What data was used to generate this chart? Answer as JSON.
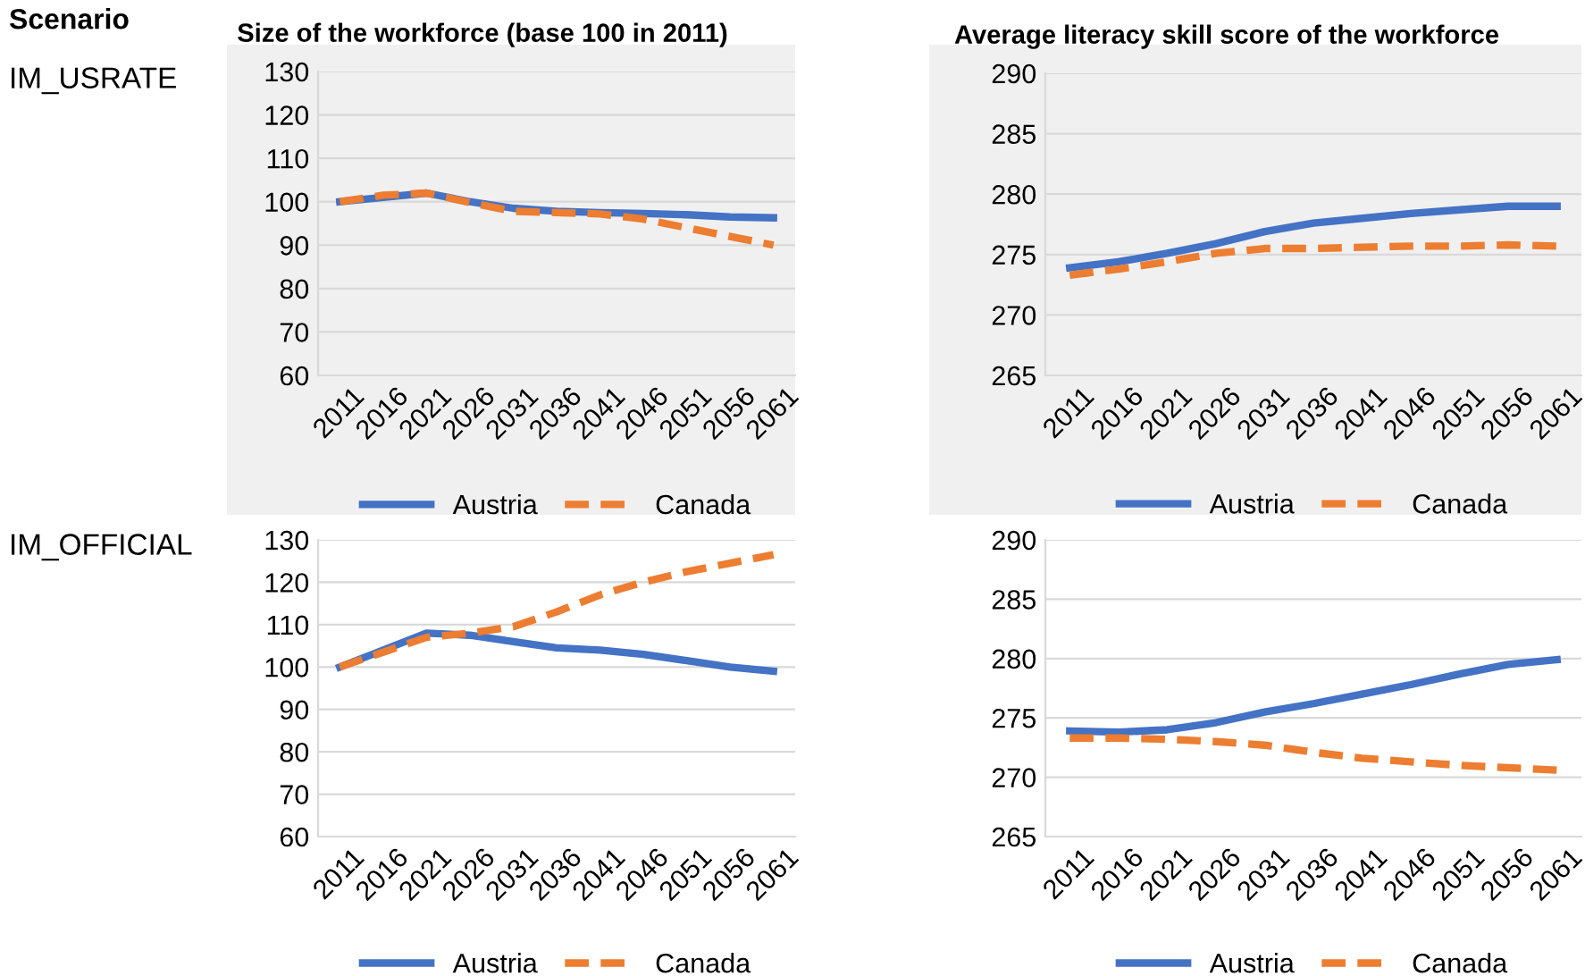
{
  "chart_data": [
    {
      "type": "line",
      "title": "Size of the workforce (base 100 in 2011)",
      "annotations": [
        "Scenario",
        "IM_USRATE"
      ],
      "categories": [
        "2011",
        "2016",
        "2021",
        "2026",
        "2031",
        "2036",
        "2041",
        "2046",
        "2051",
        "2056",
        "2061"
      ],
      "ylim": [
        60,
        130
      ],
      "yticks": [
        60,
        70,
        80,
        90,
        100,
        110,
        120,
        130
      ],
      "grid": "y",
      "legend": "bottom",
      "series": [
        {
          "name": "Austria",
          "color": "#4472c4",
          "line_style": "solid",
          "values": [
            100,
            101,
            102,
            100,
            98.5,
            97.8,
            97.5,
            97.3,
            97,
            96.5,
            96.3
          ]
        },
        {
          "name": "Canada",
          "color": "#ed7d31",
          "line_style": "dashed",
          "values": [
            100,
            101.5,
            102,
            99.8,
            97.8,
            97.5,
            97.2,
            96,
            94,
            92,
            90
          ]
        }
      ]
    },
    {
      "type": "line",
      "title": "Average literacy skill score of the workforce",
      "categories": [
        "2011",
        "2016",
        "2021",
        "2026",
        "2031",
        "2036",
        "2041",
        "2046",
        "2051",
        "2056",
        "2061"
      ],
      "ylim": [
        265,
        290
      ],
      "yticks": [
        265,
        270,
        275,
        280,
        285,
        290
      ],
      "grid": "y",
      "legend": "bottom",
      "series": [
        {
          "name": "Austria",
          "color": "#4472c4",
          "line_style": "solid",
          "values": [
            273.9,
            274.4,
            275.1,
            275.9,
            276.9,
            277.6,
            278,
            278.4,
            278.7,
            279,
            279
          ]
        },
        {
          "name": "Canada",
          "color": "#ed7d31",
          "line_style": "dashed",
          "values": [
            273.3,
            273.8,
            274.4,
            275.1,
            275.5,
            275.5,
            275.6,
            275.7,
            275.7,
            275.8,
            275.7
          ]
        }
      ]
    },
    {
      "type": "line",
      "annotations": [
        "IM_OFFICIAL"
      ],
      "categories": [
        "2011",
        "2016",
        "2021",
        "2026",
        "2031",
        "2036",
        "2041",
        "2046",
        "2051",
        "2056",
        "2061"
      ],
      "ylim": [
        60,
        130
      ],
      "yticks": [
        60,
        70,
        80,
        90,
        100,
        110,
        120,
        130
      ],
      "grid": "y",
      "legend": "bottom",
      "series": [
        {
          "name": "Austria",
          "color": "#4472c4",
          "line_style": "solid",
          "values": [
            100,
            104,
            108,
            107.5,
            106,
            104.5,
            104,
            103,
            101.5,
            100,
            99
          ]
        },
        {
          "name": "Canada",
          "color": "#ed7d31",
          "line_style": "dashed",
          "values": [
            100,
            103.5,
            107,
            108,
            109.5,
            113,
            117,
            120,
            122.5,
            124.5,
            126.5
          ]
        }
      ]
    },
    {
      "type": "line",
      "categories": [
        "2011",
        "2016",
        "2021",
        "2026",
        "2031",
        "2036",
        "2041",
        "2046",
        "2051",
        "2056",
        "2061"
      ],
      "ylim": [
        265,
        290
      ],
      "yticks": [
        265,
        270,
        275,
        280,
        285,
        290
      ],
      "grid": "y",
      "legend": "bottom",
      "series": [
        {
          "name": "Austria",
          "color": "#4472c4",
          "line_style": "solid",
          "values": [
            273.9,
            273.8,
            274,
            274.6,
            275.5,
            276.2,
            277,
            277.8,
            278.7,
            279.5,
            279.9
          ]
        },
        {
          "name": "Canada",
          "color": "#ed7d31",
          "line_style": "dashed",
          "values": [
            273.3,
            273.3,
            273.2,
            273,
            272.7,
            272.1,
            271.6,
            271.3,
            271,
            270.8,
            270.6
          ]
        }
      ]
    }
  ]
}
